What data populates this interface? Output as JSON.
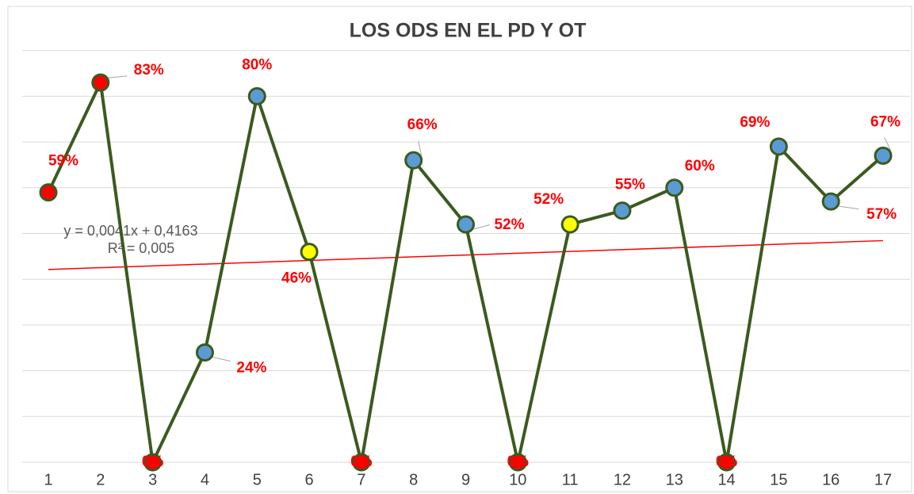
{
  "chart_data": {
    "type": "line",
    "title": "LOS ODS EN EL PD Y OT",
    "categories": [
      "1",
      "2",
      "3",
      "4",
      "5",
      "6",
      "7",
      "8",
      "9",
      "10",
      "11",
      "12",
      "13",
      "14",
      "15",
      "16",
      "17"
    ],
    "values": [
      59,
      83,
      0,
      24,
      80,
      46,
      0,
      66,
      52,
      0,
      52,
      55,
      60,
      0,
      69,
      57,
      67
    ],
    "value_labels": [
      "59%",
      "83%",
      "0%",
      "24%",
      "80%",
      "46%",
      "0%",
      "66%",
      "52%",
      "0%",
      "52%",
      "55%",
      "60%",
      "0%",
      "69%",
      "57%",
      "67%"
    ],
    "line_color": "#3b5a1f",
    "marker_colors": [
      "#ff0000",
      "#ff0000",
      "#ff0000",
      "#5b9bd5",
      "#5b9bd5",
      "#ffff00",
      "#ff0000",
      "#5b9bd5",
      "#5b9bd5",
      "#ff0000",
      "#ffff00",
      "#5b9bd5",
      "#5b9bd5",
      "#ff0000",
      "#5b9bd5",
      "#5b9bd5",
      "#5b9bd5"
    ],
    "trendline": {
      "color": "#ff0000",
      "equation": "y = 0,0041x + 0,4163",
      "r_squared": "R² = 0,005"
    },
    "ylim": [
      0,
      100
    ],
    "yticks": [
      0,
      10,
      20,
      30,
      40,
      50,
      60,
      70,
      80,
      90,
      100
    ],
    "grid": true
  }
}
